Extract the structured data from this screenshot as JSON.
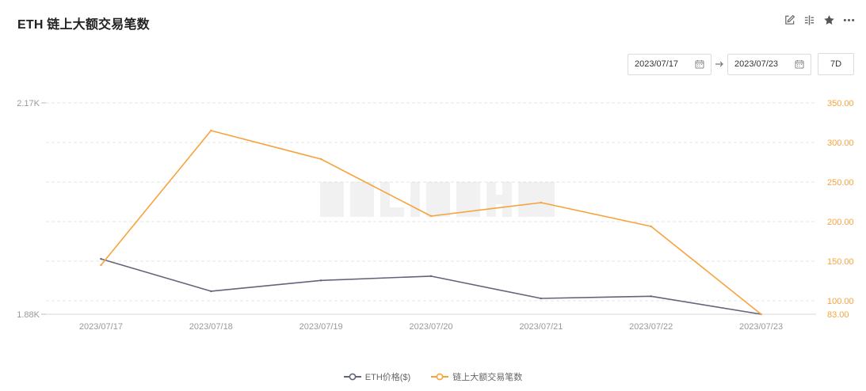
{
  "header": {
    "title": "ETH 链上大额交易笔数"
  },
  "toolbar": {
    "icons": [
      "edit-icon",
      "compare-icon",
      "star-icon",
      "more-icon"
    ]
  },
  "range": {
    "start": "2023/07/17",
    "end": "2023/07/23",
    "preset": "7D"
  },
  "colors": {
    "price": "#62657a",
    "count": "#f7a33d",
    "grid": "#e6e6e6",
    "axis_text": "#999999"
  },
  "chart_data": {
    "type": "line",
    "x": [
      "2023/07/17",
      "2023/07/18",
      "2023/07/19",
      "2023/07/20",
      "2023/07/21",
      "2023/07/22",
      "2023/07/23"
    ],
    "series": [
      {
        "name": "ETH价格($)",
        "axis": "left",
        "values": [
          1953,
          1908,
          1923,
          1929,
          1898,
          1901,
          1876
        ]
      },
      {
        "name": "链上大额交易笔数",
        "axis": "right",
        "values": [
          145,
          315,
          279,
          207,
          224,
          194,
          83
        ]
      }
    ],
    "y_left": {
      "min": 1876,
      "max": 2170,
      "tick_labels": [
        "2.17K",
        "1.88K"
      ],
      "tick_values": [
        2170,
        1876
      ]
    },
    "y_right": {
      "min": 83,
      "max": 350,
      "tick_values": [
        350,
        300,
        250,
        200,
        150,
        100,
        83
      ],
      "tick_labels": [
        "350.00",
        "300.00",
        "250.00",
        "200.00",
        "150.00",
        "100.00",
        "83.00"
      ]
    },
    "grid": true,
    "legend_position": "bottom"
  }
}
